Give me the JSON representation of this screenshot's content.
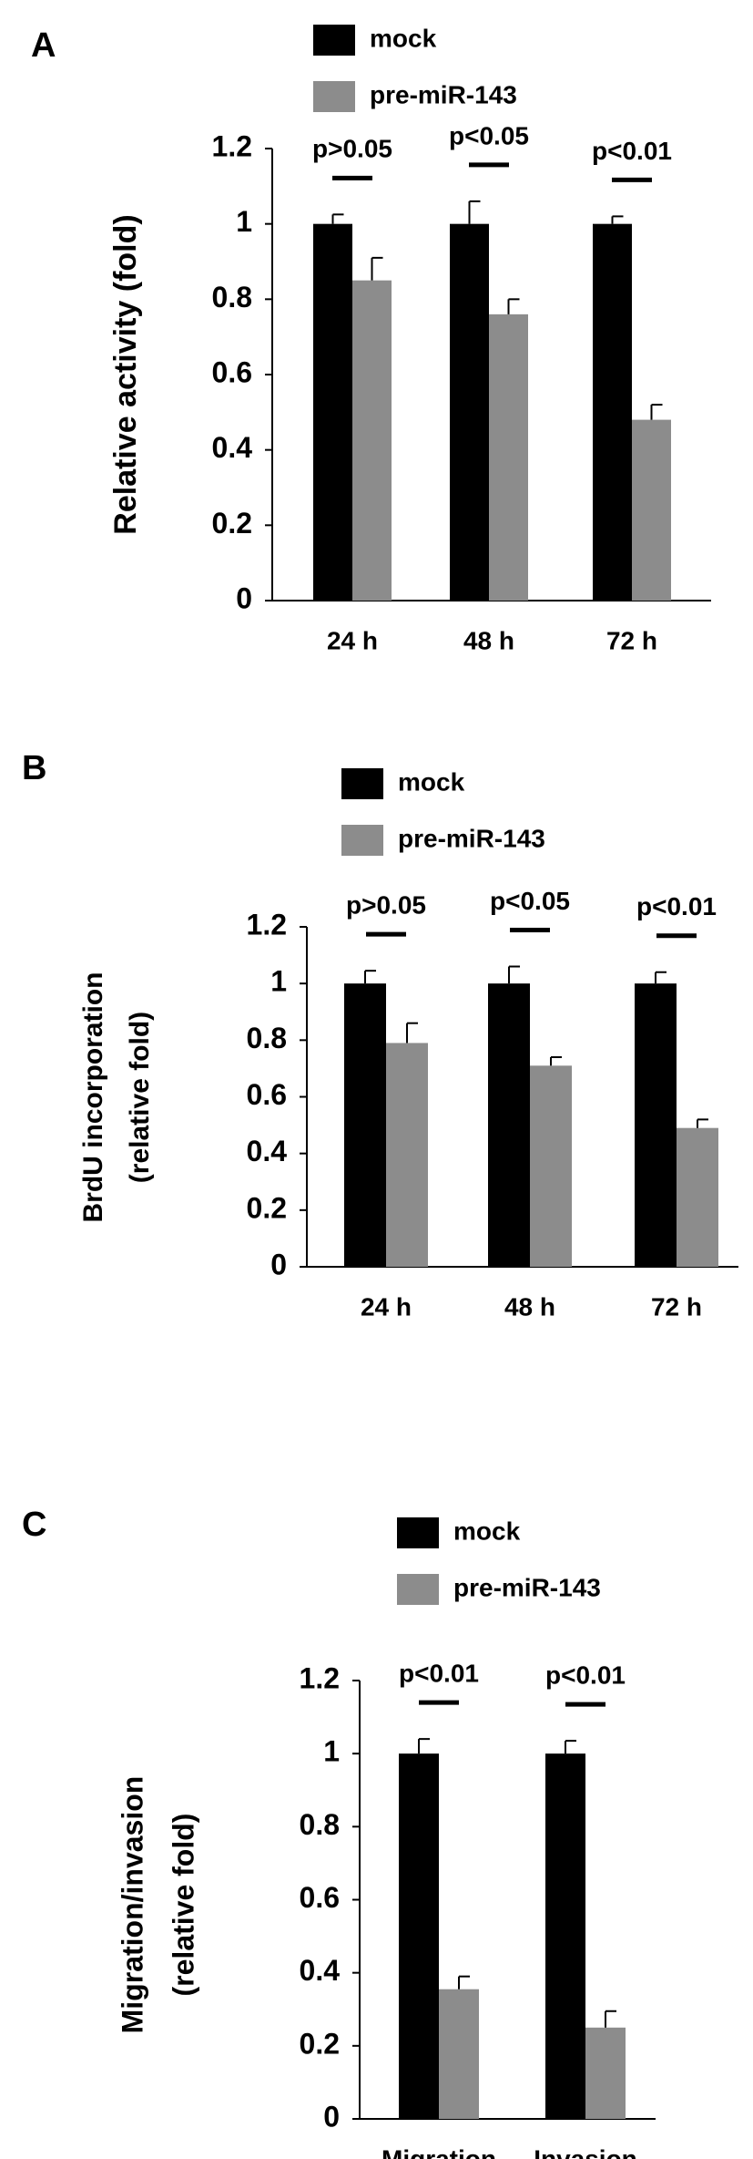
{
  "chart_data": [
    {
      "type": "bar",
      "panel_label": "A",
      "y_label": [
        "Relative activity (fold)"
      ],
      "categories": [
        "24 h",
        "48 h",
        "72 h"
      ],
      "series": [
        {
          "name": "mock",
          "color": "#000000",
          "values": [
            1,
            1,
            1
          ],
          "errors": [
            0.025,
            0.06,
            0.02
          ]
        },
        {
          "name": "pre-miR-143",
          "color": "#8c8c8c",
          "values": [
            0.85,
            0.76,
            0.48
          ],
          "errors": [
            0.06,
            0.04,
            0.04
          ]
        }
      ],
      "annotations": [
        "p>0.05",
        "p<0.05",
        "p<0.01"
      ],
      "ylim": [
        0,
        1.2
      ],
      "yticks": [
        0,
        0.2,
        0.4,
        0.6,
        0.8,
        1,
        1.2
      ],
      "legend": "top"
    },
    {
      "type": "bar",
      "panel_label": "B",
      "y_label": [
        "BrdU incorporation",
        "(relative fold)"
      ],
      "categories": [
        "24 h",
        "48 h",
        "72 h"
      ],
      "series": [
        {
          "name": "mock",
          "color": "#000000",
          "values": [
            1,
            1,
            1
          ],
          "errors": [
            0.045,
            0.06,
            0.04
          ]
        },
        {
          "name": "pre-miR-143",
          "color": "#8c8c8c",
          "values": [
            0.79,
            0.71,
            0.49
          ],
          "errors": [
            0.07,
            0.03,
            0.03
          ]
        }
      ],
      "annotations": [
        "p>0.05",
        "p<0.05",
        "p<0.01"
      ],
      "ylim": [
        0,
        1.2
      ],
      "yticks": [
        0,
        0.2,
        0.4,
        0.6,
        0.8,
        1,
        1.2
      ],
      "legend": "top"
    },
    {
      "type": "bar",
      "panel_label": "C",
      "y_label": [
        "Migration/invasion",
        "(relative fold)"
      ],
      "categories": [
        "Migration",
        "Invasion"
      ],
      "series": [
        {
          "name": "mock",
          "color": "#000000",
          "values": [
            1,
            1
          ],
          "errors": [
            0.04,
            0.035
          ]
        },
        {
          "name": "pre-miR-143",
          "color": "#8c8c8c",
          "values": [
            0.355,
            0.25
          ],
          "errors": [
            0.035,
            0.045
          ]
        }
      ],
      "annotations": [
        "p<0.01",
        "p<0.01"
      ],
      "ylim": [
        0,
        1.2
      ],
      "yticks": [
        0,
        0.2,
        0.4,
        0.6,
        0.8,
        1,
        1.2
      ],
      "legend": "top"
    }
  ]
}
